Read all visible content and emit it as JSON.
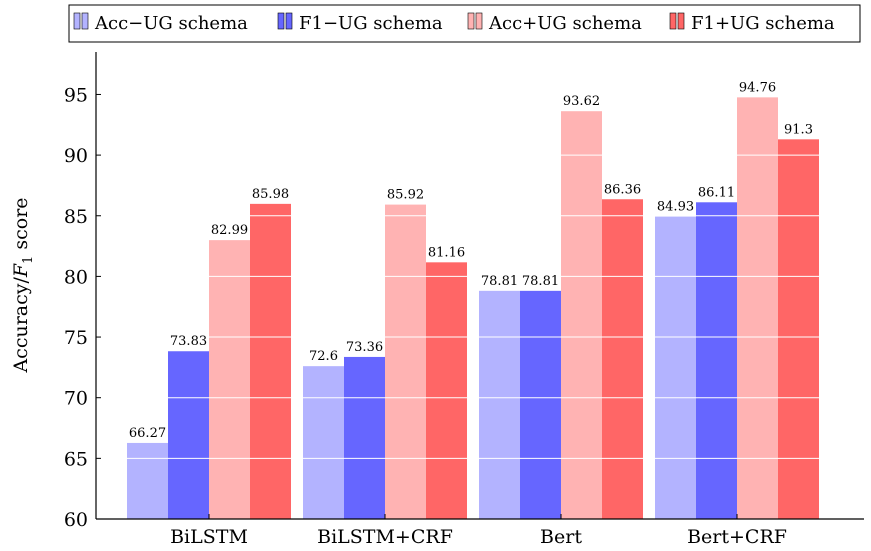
{
  "chart_data": {
    "type": "bar",
    "categories": [
      "BiLSTM",
      "BiLSTM+CRF",
      "Bert",
      "Bert+CRF"
    ],
    "series": [
      {
        "name": "Acc−UG schema",
        "color": "#b3b3ff",
        "values": [
          66.27,
          72.6,
          78.81,
          84.93
        ]
      },
      {
        "name": "F1−UG schema",
        "color": "#6666ff",
        "values": [
          73.83,
          73.36,
          78.81,
          86.11
        ]
      },
      {
        "name": "Acc+UG schema",
        "color": "#ffb3b3",
        "values": [
          82.99,
          85.92,
          93.62,
          94.76
        ]
      },
      {
        "name": "F1+UG schema",
        "color": "#ff6666",
        "values": [
          85.98,
          81.16,
          86.36,
          91.3
        ]
      }
    ],
    "value_labels": [
      [
        "66.27",
        "72.6",
        "78.81",
        "84.93"
      ],
      [
        "73.83",
        "73.36",
        "78.81",
        "86.11"
      ],
      [
        "82.99",
        "85.92",
        "93.62",
        "94.76"
      ],
      [
        "85.98",
        "81.16",
        "86.36",
        "91.3"
      ]
    ],
    "title": "",
    "xlabel": "",
    "ylabel": "Accuracy/",
    "ylabel_math": "F",
    "ylabel_sub": "1",
    "ylabel_suffix": " score",
    "ylim": [
      60,
      98.5
    ],
    "yticks": [
      60,
      65,
      70,
      75,
      80,
      85,
      90,
      95
    ],
    "grid": "horizontal-white-over-bars",
    "legend_position": "top"
  }
}
